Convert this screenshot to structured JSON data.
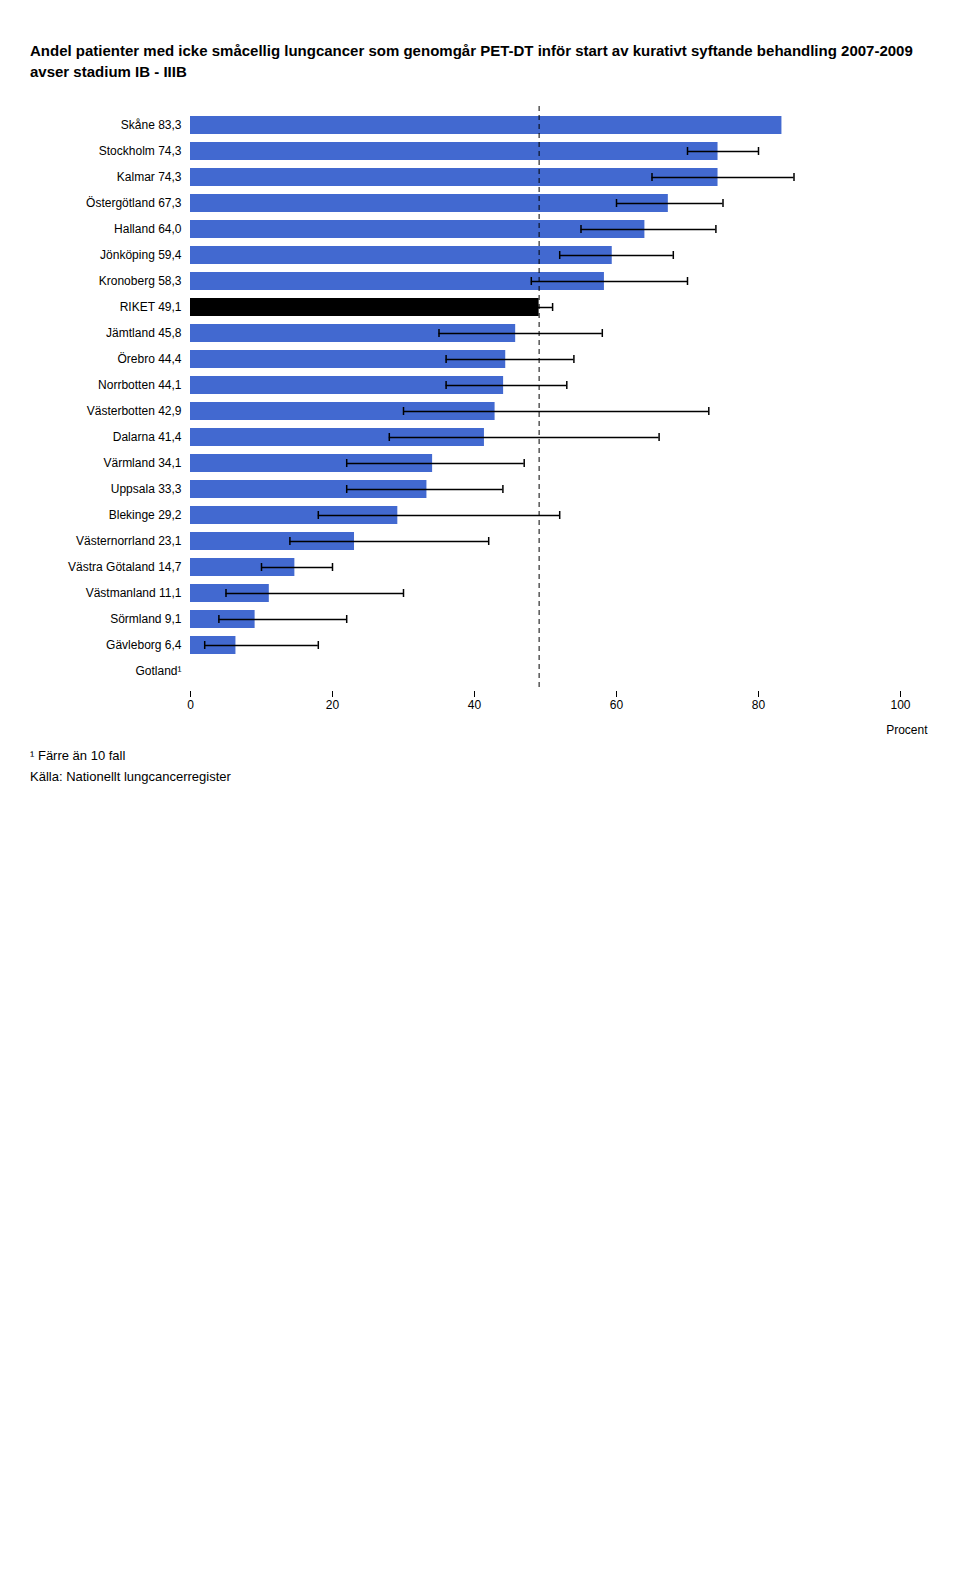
{
  "chart_data": {
    "type": "bar",
    "orientation": "horizontal",
    "title": "Andel patienter med icke småcellig lungcancer som genomgår PET-DT inför start av kurativt syftande behandling 2007-2009 avser stadium IB - IIIB",
    "categories": [
      "Skåne 83,3",
      "Stockholm 74,3",
      "Kalmar 74,3",
      "Östergötland 67,3",
      "Halland 64,0",
      "Jönköping 59,4",
      "Kronoberg 58,3",
      "RIKET 49,1",
      "Jämtland 45,8",
      "Örebro 44,4",
      "Norrbotten 44,1",
      "Västerbotten 42,9",
      "Dalarna 41,4",
      "Värmland 34,1",
      "Uppsala 33,3",
      "Blekinge 29,2",
      "Västernorrland 23,1",
      "Västra Götaland 14,7",
      "Västmanland 11,1",
      "Sörmland 9,1",
      "Gävleborg 6,4",
      "Gotland¹"
    ],
    "values": [
      83.3,
      74.3,
      74.3,
      67.3,
      64.0,
      59.4,
      58.3,
      49.1,
      45.8,
      44.4,
      44.1,
      42.9,
      41.4,
      34.1,
      33.3,
      29.2,
      23.1,
      14.7,
      11.1,
      9.1,
      6.4,
      0.0
    ],
    "colors": [
      "#4269d0",
      "#4269d0",
      "#4269d0",
      "#4269d0",
      "#4269d0",
      "#4269d0",
      "#4269d0",
      "#000000",
      "#4269d0",
      "#4269d0",
      "#4269d0",
      "#4269d0",
      "#4269d0",
      "#4269d0",
      "#4269d0",
      "#4269d0",
      "#4269d0",
      "#4269d0",
      "#4269d0",
      "#4269d0",
      "#4269d0",
      "#4269d0"
    ],
    "error_low": [
      null,
      70,
      65,
      60,
      55,
      52,
      48,
      47,
      35,
      36,
      36,
      30,
      28,
      22,
      22,
      18,
      14,
      10,
      5,
      4,
      2,
      null
    ],
    "error_high": [
      null,
      80,
      85,
      75,
      74,
      68,
      70,
      51,
      58,
      54,
      53,
      73,
      66,
      47,
      44,
      52,
      42,
      20,
      30,
      22,
      18,
      null
    ],
    "reference_line": 49.1,
    "xlabel": "Procent",
    "xlim": [
      0,
      100
    ],
    "xticks": [
      0,
      20,
      40,
      60,
      80,
      100
    ],
    "annotations": [
      "¹ Färre än 10 fall",
      "Källa: Nationellt lungcancerregister"
    ]
  }
}
